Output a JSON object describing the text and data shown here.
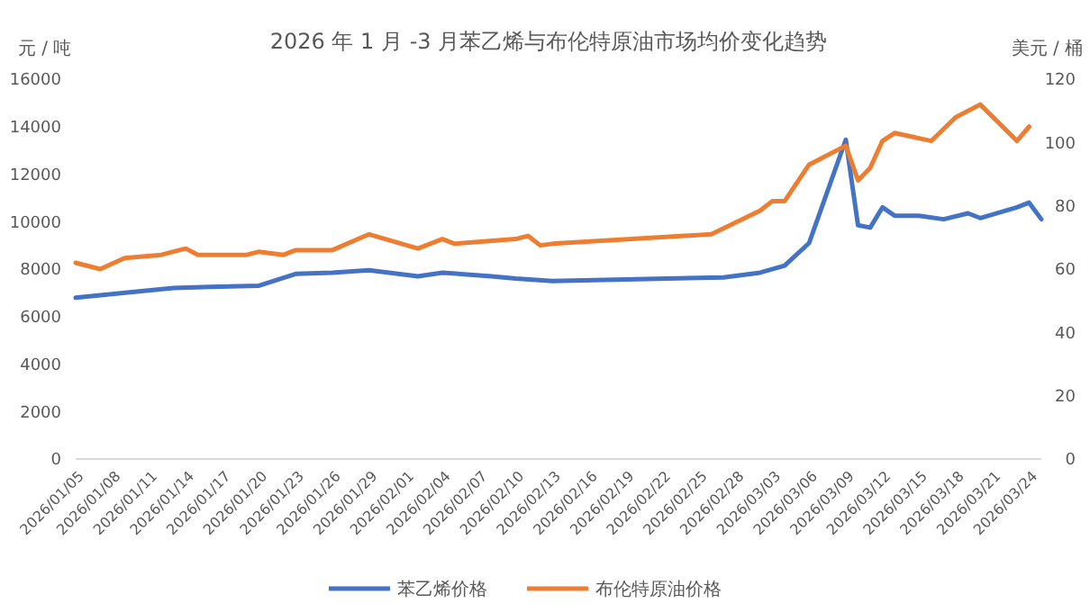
{
  "chart_data": {
    "type": "line",
    "title": "2026 年 1 月 -3 月苯乙烯与布伦特原油市场均价变化趋势",
    "ylabel": "元 / 吨",
    "y2label": "美元 / 桶",
    "xlim": [
      "2026-01-05",
      "2026-03-25"
    ],
    "xticks": [
      {
        "value": "2026-01-05",
        "label": "2026/01/05"
      },
      {
        "value": "2026-01-08",
        "label": "2026/01/08"
      },
      {
        "value": "2026-01-11",
        "label": "2026/01/11"
      },
      {
        "value": "2026-01-14",
        "label": "2026/01/14"
      },
      {
        "value": "2026-01-17",
        "label": "2026/01/17"
      },
      {
        "value": "2026-01-20",
        "label": "2026/01/20"
      },
      {
        "value": "2026-01-23",
        "label": "2026/01/23"
      },
      {
        "value": "2026-01-26",
        "label": "2026/01/26"
      },
      {
        "value": "2026-01-29",
        "label": "2026/01/29"
      },
      {
        "value": "2026-02-01",
        "label": "2026/02/01"
      },
      {
        "value": "2026-02-04",
        "label": "2026/02/04"
      },
      {
        "value": "2026-02-07",
        "label": "2026/02/07"
      },
      {
        "value": "2026-02-10",
        "label": "2026/02/10"
      },
      {
        "value": "2026-02-13",
        "label": "2026/02/13"
      },
      {
        "value": "2026-02-16",
        "label": "2026/02/16"
      },
      {
        "value": "2026-02-19",
        "label": "2026/02/19"
      },
      {
        "value": "2026-02-22",
        "label": "2026/02/22"
      },
      {
        "value": "2026-02-25",
        "label": "2026/02/25"
      },
      {
        "value": "2026-02-28",
        "label": "2026/02/28"
      },
      {
        "value": "2026-03-03",
        "label": "2026/03/03"
      },
      {
        "value": "2026-03-06",
        "label": "2026/03/06"
      },
      {
        "value": "2026-03-09",
        "label": "2026/03/09"
      },
      {
        "value": "2026-03-12",
        "label": "2026/03/12"
      },
      {
        "value": "2026-03-15",
        "label": "2026/03/15"
      },
      {
        "value": "2026-03-18",
        "label": "2026/03/18"
      },
      {
        "value": "2026-03-21",
        "label": "2026/03/21"
      },
      {
        "value": "2026-03-24",
        "label": "2026/03/24"
      }
    ],
    "ylim": [
      0,
      16000
    ],
    "yticks": [
      0,
      2000,
      4000,
      6000,
      8000,
      10000,
      12000,
      14000,
      16000
    ],
    "y2lim": [
      0,
      120
    ],
    "y2ticks": [
      0,
      20,
      40,
      60,
      80,
      100,
      120
    ],
    "grid": false,
    "legend": "bottom",
    "line_style": "solid",
    "marker": "none",
    "series": [
      {
        "name": "苯乙烯价格",
        "color": "#4472c4",
        "x": [
          "2026-01-05",
          "2026-01-10",
          "2026-01-13",
          "2026-01-16",
          "2026-01-20",
          "2026-01-23",
          "2026-01-26",
          "2026-01-29",
          "2026-02-02",
          "2026-02-04",
          "2026-02-08",
          "2026-02-10",
          "2026-02-13",
          "2026-02-27",
          "2026-03-02",
          "2026-03-04",
          "2026-03-06",
          "2026-03-09",
          "2026-03-10",
          "2026-03-11",
          "2026-03-12",
          "2026-03-13",
          "2026-03-15",
          "2026-03-17",
          "2026-03-19",
          "2026-03-20",
          "2026-03-23",
          "2026-03-24",
          "2026-03-25"
        ],
        "values": [
          6800,
          7050,
          7200,
          7250,
          7300,
          7800,
          7850,
          7950,
          7700,
          7850,
          7700,
          7600,
          7500,
          7650,
          7850,
          8150,
          9100,
          13450,
          9850,
          9750,
          10600,
          10250,
          10250,
          10100,
          10350,
          10150,
          10600,
          10800,
          10100
        ]
      },
      {
        "name": "布伦特原油价格",
        "color": "#ed7d31",
        "axis": "y2",
        "x": [
          "2026-01-05",
          "2026-01-07",
          "2026-01-09",
          "2026-01-12",
          "2026-01-14",
          "2026-01-15",
          "2026-01-19",
          "2026-01-20",
          "2026-01-22",
          "2026-01-23",
          "2026-01-26",
          "2026-01-29",
          "2026-02-02",
          "2026-02-04",
          "2026-02-05",
          "2026-02-10",
          "2026-02-11",
          "2026-02-12",
          "2026-02-13",
          "2026-02-26",
          "2026-03-02",
          "2026-03-03",
          "2026-03-04",
          "2026-03-06",
          "2026-03-09",
          "2026-03-10",
          "2026-03-11",
          "2026-03-12",
          "2026-03-13",
          "2026-03-16",
          "2026-03-18",
          "2026-03-20",
          "2026-03-23",
          "2026-03-24"
        ],
        "values": [
          62,
          60,
          63.5,
          64.5,
          66.5,
          64.5,
          64.5,
          65.5,
          64.5,
          66,
          66,
          71,
          66.5,
          69.5,
          68,
          69.5,
          70.5,
          67.5,
          68,
          71,
          78.5,
          81.5,
          81.5,
          93,
          99,
          88,
          92,
          100.5,
          103,
          100.5,
          108,
          112,
          100.5,
          105
        ]
      }
    ]
  }
}
